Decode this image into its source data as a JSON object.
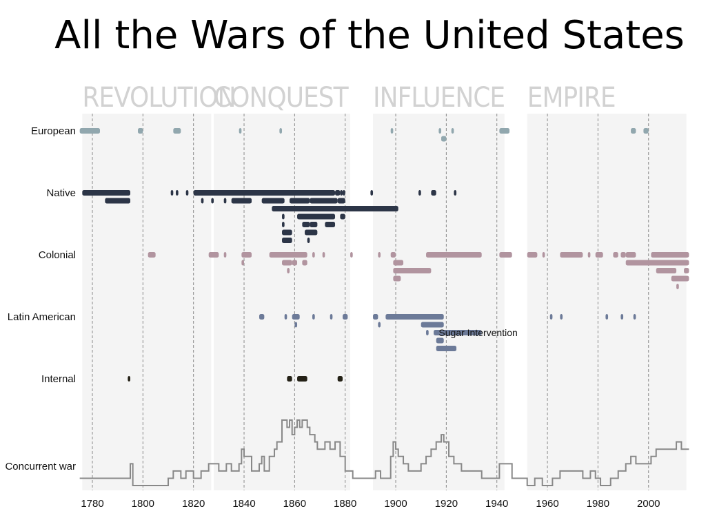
{
  "chart_data": {
    "type": "timeline",
    "title": "All the Wars of the United States",
    "eras": [
      {
        "label": "Revolution",
        "start": 1776,
        "end": 1827
      },
      {
        "label": "Conquest",
        "start": 1828,
        "end": 1882
      },
      {
        "label": "Influence",
        "start": 1891,
        "end": 1943
      },
      {
        "label": "Empire",
        "start": 1952,
        "end": 2015
      }
    ],
    "xlim": [
      1775,
      2016
    ],
    "xticks": [
      1780,
      1800,
      1820,
      1840,
      1860,
      1880,
      1900,
      1920,
      1940,
      1960,
      1980,
      2000
    ],
    "grid": "dashed vertical lines every 20 years",
    "categories": [
      {
        "name": "European",
        "color": "#91a7ae",
        "wars": [
          [
            1775,
            1783,
            0
          ],
          [
            1798,
            1800,
            0
          ],
          [
            1812,
            1815,
            0
          ],
          [
            1838,
            1839,
            0
          ],
          [
            1854,
            1855,
            0
          ],
          [
            1898,
            1899,
            0
          ],
          [
            1917,
            1918,
            0
          ],
          [
            1922,
            1923,
            0
          ],
          [
            1941,
            1945,
            0
          ],
          [
            1918,
            1920,
            1
          ],
          [
            1993,
            1995,
            0
          ],
          [
            1998,
            2000,
            0
          ]
        ]
      },
      {
        "name": "Native",
        "color": "#2c3547",
        "wars": [
          [
            1776,
            1795,
            0
          ],
          [
            1811,
            1812,
            0
          ],
          [
            1813,
            1814,
            0
          ],
          [
            1817,
            1818,
            0
          ],
          [
            1820,
            1876,
            0
          ],
          [
            1876,
            1878,
            0
          ],
          [
            1878,
            1879,
            0
          ],
          [
            1879,
            1880,
            0
          ],
          [
            1890,
            1891,
            0
          ],
          [
            1909,
            1910,
            0
          ],
          [
            1914,
            1916,
            0
          ],
          [
            1923,
            1924,
            0
          ],
          [
            1785,
            1795,
            1
          ],
          [
            1823,
            1824,
            1
          ],
          [
            1827,
            1828,
            1
          ],
          [
            1832,
            1833,
            1
          ],
          [
            1835,
            1843,
            1
          ],
          [
            1847,
            1856,
            1
          ],
          [
            1858,
            1866,
            1
          ],
          [
            1866,
            1877,
            1
          ],
          [
            1877,
            1880,
            1
          ],
          [
            1851,
            1901,
            2
          ],
          [
            1855,
            1856,
            3
          ],
          [
            1861,
            1876,
            3
          ],
          [
            1878,
            1880,
            3
          ],
          [
            1855,
            1856,
            4
          ],
          [
            1863,
            1866,
            4
          ],
          [
            1866,
            1869,
            4
          ],
          [
            1872,
            1876,
            4
          ],
          [
            1855,
            1859,
            5
          ],
          [
            1864,
            1869,
            5
          ],
          [
            1855,
            1859,
            6
          ],
          [
            1865,
            1866,
            6
          ]
        ]
      },
      {
        "name": "Colonial",
        "color": "#b1949f",
        "wars": [
          [
            1802,
            1805,
            0
          ],
          [
            1826,
            1830,
            0
          ],
          [
            1832,
            1833,
            0
          ],
          [
            1839,
            1843,
            0
          ],
          [
            1850,
            1865,
            0
          ],
          [
            1867,
            1868,
            0
          ],
          [
            1871,
            1872,
            0
          ],
          [
            1882,
            1883,
            0
          ],
          [
            1893,
            1894,
            0
          ],
          [
            1898,
            1900,
            0
          ],
          [
            1912,
            1934,
            0
          ],
          [
            1941,
            1946,
            0
          ],
          [
            1952,
            1956,
            0
          ],
          [
            1958,
            1959,
            0
          ],
          [
            1965,
            1974,
            0
          ],
          [
            1976,
            1977,
            0
          ],
          [
            1979,
            1982,
            0
          ],
          [
            1986,
            1988,
            0
          ],
          [
            1989,
            1991,
            0
          ],
          [
            1991,
            1995,
            0
          ],
          [
            2001,
            2016,
            0
          ],
          [
            1839,
            1840,
            1
          ],
          [
            1855,
            1859,
            1
          ],
          [
            1859,
            1861,
            1
          ],
          [
            1863,
            1865,
            1
          ],
          [
            1899,
            1903,
            1
          ],
          [
            1991,
            2016,
            1
          ],
          [
            1857,
            1858,
            2
          ],
          [
            1899,
            1914,
            2
          ],
          [
            2003,
            2011,
            2
          ],
          [
            2014,
            2016,
            2
          ],
          [
            1899,
            1902,
            3
          ],
          [
            2009,
            2016,
            3
          ],
          [
            2011,
            2012,
            4
          ]
        ]
      },
      {
        "name": "Latin American",
        "color": "#6c7a98",
        "wars": [
          [
            1846,
            1848,
            0
          ],
          [
            1856,
            1857,
            0
          ],
          [
            1859,
            1862,
            0
          ],
          [
            1867,
            1868,
            0
          ],
          [
            1874,
            1875,
            0
          ],
          [
            1879,
            1881,
            0
          ],
          [
            1891,
            1893,
            0
          ],
          [
            1896,
            1919,
            0
          ],
          [
            1961,
            1962,
            0
          ],
          [
            1965,
            1966,
            0
          ],
          [
            1983,
            1984,
            0
          ],
          [
            1989,
            1990,
            0
          ],
          [
            1994,
            1995,
            0
          ],
          [
            1860,
            1861,
            1
          ],
          [
            1893,
            1894,
            1
          ],
          [
            1910,
            1919,
            1
          ],
          [
            1912,
            1913,
            2
          ],
          [
            1915,
            1934,
            2
          ],
          [
            1916,
            1919,
            3
          ],
          [
            1916,
            1924,
            4
          ]
        ]
      },
      {
        "name": "Internal",
        "color": "#242116",
        "wars": [
          [
            1794,
            1795,
            0
          ],
          [
            1857,
            1859,
            0
          ],
          [
            1861,
            1865,
            0
          ],
          [
            1877,
            1879,
            0
          ]
        ]
      }
    ],
    "annotations": [
      {
        "text": "Sugar Intervention",
        "x": 1917,
        "category": "Latin American",
        "row": 2
      }
    ],
    "concurrent": {
      "label": "Concurrent war",
      "ymax": 9,
      "steps": [
        [
          1775,
          1
        ],
        [
          1795,
          3
        ],
        [
          1796,
          0
        ],
        [
          1806,
          0
        ],
        [
          1810,
          1
        ],
        [
          1812,
          2
        ],
        [
          1815,
          1
        ],
        [
          1817,
          2
        ],
        [
          1820,
          1
        ],
        [
          1823,
          2
        ],
        [
          1826,
          3
        ],
        [
          1830,
          2
        ],
        [
          1833,
          3
        ],
        [
          1835,
          2
        ],
        [
          1838,
          3
        ],
        [
          1839,
          5
        ],
        [
          1840,
          4
        ],
        [
          1843,
          2
        ],
        [
          1846,
          3
        ],
        [
          1847,
          4
        ],
        [
          1848,
          2
        ],
        [
          1850,
          4
        ],
        [
          1852,
          5
        ],
        [
          1853,
          6
        ],
        [
          1854,
          6
        ],
        [
          1855,
          9
        ],
        [
          1857,
          8
        ],
        [
          1858,
          9
        ],
        [
          1859,
          7
        ],
        [
          1860,
          8
        ],
        [
          1861,
          9
        ],
        [
          1862,
          8
        ],
        [
          1863,
          9
        ],
        [
          1865,
          8
        ],
        [
          1866,
          7
        ],
        [
          1868,
          6
        ],
        [
          1869,
          5
        ],
        [
          1872,
          6
        ],
        [
          1874,
          5
        ],
        [
          1876,
          6
        ],
        [
          1878,
          4
        ],
        [
          1880,
          2
        ],
        [
          1883,
          1
        ],
        [
          1889,
          1
        ],
        [
          1892,
          2
        ],
        [
          1894,
          1
        ],
        [
          1898,
          4
        ],
        [
          1899,
          6
        ],
        [
          1900,
          5
        ],
        [
          1901,
          4
        ],
        [
          1903,
          3
        ],
        [
          1905,
          2
        ],
        [
          1910,
          3
        ],
        [
          1912,
          4
        ],
        [
          1914,
          5
        ],
        [
          1916,
          6
        ],
        [
          1918,
          7
        ],
        [
          1919,
          6
        ],
        [
          1921,
          4
        ],
        [
          1923,
          3
        ],
        [
          1926,
          2
        ],
        [
          1934,
          1
        ],
        [
          1941,
          3
        ],
        [
          1946,
          1
        ],
        [
          1952,
          0
        ],
        [
          1955,
          1
        ],
        [
          1958,
          0
        ],
        [
          1960,
          0
        ],
        [
          1962,
          1
        ],
        [
          1965,
          2
        ],
        [
          1974,
          1
        ],
        [
          1977,
          2
        ],
        [
          1979,
          1
        ],
        [
          1981,
          0
        ],
        [
          1985,
          1
        ],
        [
          1988,
          2
        ],
        [
          1991,
          3
        ],
        [
          1993,
          4
        ],
        [
          1995,
          3
        ],
        [
          2001,
          4
        ],
        [
          2003,
          5
        ],
        [
          2011,
          6
        ],
        [
          2013,
          5
        ],
        [
          2016,
          5
        ]
      ]
    }
  }
}
